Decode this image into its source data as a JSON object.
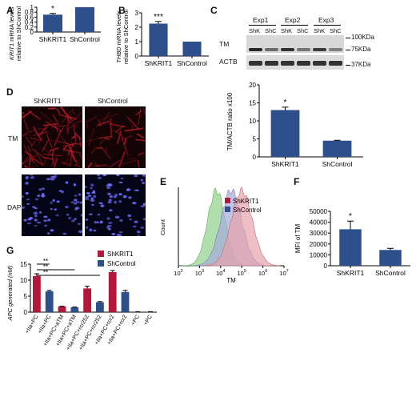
{
  "colors": {
    "blue": "#2d4f8c",
    "red": "#b5173a",
    "green": "#8fd18a",
    "violet": "#a7a9dc",
    "pink": "#e7a3ab",
    "blot_bg": "#d8d8d8",
    "micro_bg": "#0a0a14"
  },
  "panels": {
    "A": {
      "letter": "A"
    },
    "B": {
      "letter": "B"
    },
    "C": {
      "letter": "C"
    },
    "D": {
      "letter": "D"
    },
    "E": {
      "letter": "E"
    },
    "F": {
      "letter": "F"
    },
    "G": {
      "letter": "G"
    }
  },
  "chart_data": [
    {
      "id": "A",
      "type": "bar",
      "categories": [
        "ShKRIT1",
        "ShControl"
      ],
      "values": [
        0.7,
        1.0
      ],
      "errors": [
        0.05,
        0
      ],
      "ylabel_gene": "KRIT1",
      "ylabel_rest": " mRNA levels",
      "ylabel_line2": "relative to ShControl",
      "ylim": [
        0,
        1.0
      ],
      "ticks": [
        "0",
        "0.2",
        "0.4",
        "0.6",
        "0.8",
        "1"
      ],
      "annotations": [
        "*"
      ]
    },
    {
      "id": "B",
      "type": "bar",
      "categories": [
        "ShKRIT1",
        "ShControl"
      ],
      "values": [
        2.25,
        1.0
      ],
      "errors": [
        0.15,
        0
      ],
      "ylabel_gene": "THBD",
      "ylabel_rest": " mRNA levels",
      "ylabel_line2": "relative to ShControl",
      "ylim": [
        0,
        3
      ],
      "ticks": [
        "0",
        "1",
        "2",
        "3"
      ],
      "annotations": [
        "***"
      ]
    },
    {
      "id": "C",
      "type": "bar",
      "categories": [
        "ShKRIT1",
        "ShControl"
      ],
      "values": [
        13.0,
        4.5
      ],
      "errors": [
        0.8,
        0.1
      ],
      "ylabel": "TM/ACTB ratio x100",
      "ylim": [
        0,
        20
      ],
      "ticks": [
        "0",
        "5",
        "10",
        "15",
        "20"
      ],
      "annotations": [
        "*"
      ]
    },
    {
      "id": "F",
      "type": "bar",
      "categories": [
        "ShKRIT1",
        "ShControl"
      ],
      "values": [
        33500,
        14500
      ],
      "errors": [
        7500,
        1500
      ],
      "ylabel": "MFI of TM",
      "ylim": [
        0,
        50000
      ],
      "ticks": [
        "0",
        "10000",
        "20000",
        "30000",
        "40000",
        "50000"
      ],
      "annotations": [
        "*"
      ]
    },
    {
      "id": "G",
      "type": "bar",
      "categories": [
        "+IIa+PC",
        "+IIa+PC+aTM",
        "+IIa+PC+rcr252",
        "+IIa+PC+rcr2",
        "+PC"
      ],
      "series": [
        {
          "name": "ShKRIT1",
          "values": [
            11.3,
            1.8,
            7.4,
            12.5,
            0.1
          ],
          "errors": [
            0.7,
            0.05,
            0.7,
            0.5,
            0.05
          ]
        },
        {
          "name": "ShControl",
          "values": [
            6.5,
            1.5,
            3.1,
            6.3,
            0.1
          ],
          "errors": [
            0.3,
            0.1,
            0.2,
            0.5,
            0.05
          ]
        }
      ],
      "xtick_labels": [
        "+IIa+PC",
        "+IIa+PC",
        "+IIa+PC+aTM",
        "+IIa+PC+aTM",
        "+IIa+PC+rcr252",
        "+IIa+PC+rcr252",
        "+IIa+PC+rcr2",
        "+IIa+PC+rcr2",
        "+PC",
        "+PC"
      ],
      "ylabel": "APC generated (nM)",
      "ylim": [
        0,
        15
      ],
      "ticks": [
        "0",
        "5",
        "10",
        "15"
      ],
      "annotations": [
        "**",
        "**",
        "**"
      ]
    },
    {
      "id": "E",
      "type": "area",
      "xlabel": "TM",
      "ylabel": "Count",
      "xticks": [
        "10",
        "10",
        "10",
        "10",
        "10",
        "10"
      ],
      "xtick_exps": [
        "2",
        "3",
        "4",
        "5",
        "6",
        "7"
      ],
      "series": [
        {
          "name": "ShKRIT1",
          "peak_log": 5.0
        },
        {
          "name": "ShControl",
          "peak_log": 4.5
        },
        {
          "name": "",
          "peak_log": 3.8
        }
      ]
    }
  ],
  "blot": {
    "exp_labels": [
      "Exp1",
      "Exp2",
      "Exp3"
    ],
    "lane_labels": [
      "ShK",
      "ShC",
      "ShK",
      "ShC",
      "ShK",
      "ShC"
    ],
    "row_labels": [
      "TM",
      "ACTB"
    ],
    "markers": [
      "100KDa",
      "75KDa",
      "37KDa"
    ]
  },
  "micro": {
    "col_labels": [
      "ShKRIT1",
      "ShControl"
    ],
    "row_labels": [
      "TM",
      "DAPI"
    ]
  }
}
